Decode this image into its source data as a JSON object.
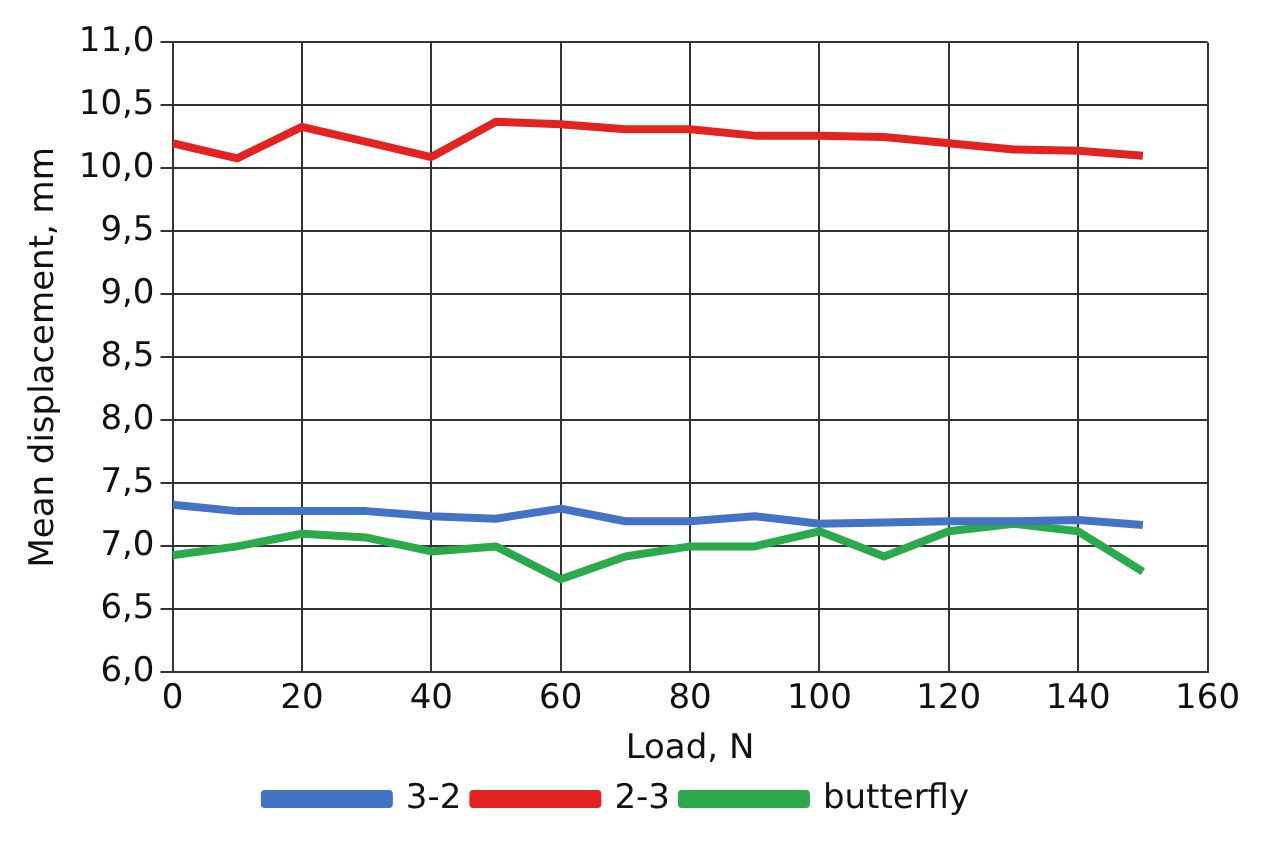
{
  "chart_data": {
    "type": "line",
    "xlabel": "Load, N",
    "ylabel": "Mean displacement, mm",
    "x": [
      0,
      10,
      20,
      30,
      40,
      50,
      60,
      70,
      80,
      90,
      100,
      110,
      120,
      130,
      140,
      150
    ],
    "series": [
      {
        "name": "3-2",
        "color": "#4472c4",
        "values": [
          7.33,
          7.28,
          7.28,
          7.28,
          7.24,
          7.22,
          7.3,
          7.2,
          7.2,
          7.24,
          7.18,
          7.19,
          7.2,
          7.2,
          7.21,
          7.17
        ]
      },
      {
        "name": "2-3",
        "color": "#e32222",
        "values": [
          10.2,
          10.08,
          10.33,
          10.21,
          10.09,
          10.37,
          10.35,
          10.31,
          10.31,
          10.26,
          10.26,
          10.25,
          10.2,
          10.15,
          10.14,
          10.1
        ]
      },
      {
        "name": "butterfly",
        "color": "#2aaa4a",
        "values": [
          6.93,
          7.0,
          7.1,
          7.07,
          6.96,
          7.0,
          6.74,
          6.92,
          7.0,
          7.0,
          7.12,
          6.92,
          7.12,
          7.18,
          7.12,
          6.8
        ]
      }
    ],
    "xlim": [
      0,
      160
    ],
    "xticks": [
      0,
      20,
      40,
      60,
      80,
      100,
      120,
      140,
      160
    ],
    "ylim": [
      6,
      11
    ],
    "yticks": [
      {
        "value": 6,
        "label": "6,0"
      },
      {
        "value": 6.5,
        "label": "6,5"
      },
      {
        "value": 7,
        "label": "7,0"
      },
      {
        "value": 7.5,
        "label": "7,5"
      },
      {
        "value": 8,
        "label": "8,0"
      },
      {
        "value": 8.5,
        "label": "8,5"
      },
      {
        "value": 9,
        "label": "9,0"
      },
      {
        "value": 9.5,
        "label": "9,5"
      },
      {
        "value": 10,
        "label": "10,0"
      },
      {
        "value": 10.5,
        "label": "10,5"
      },
      {
        "value": 11,
        "label": "11,0"
      }
    ],
    "grid": true,
    "legend": "bottom",
    "marker": "none",
    "line_style": "solid"
  }
}
